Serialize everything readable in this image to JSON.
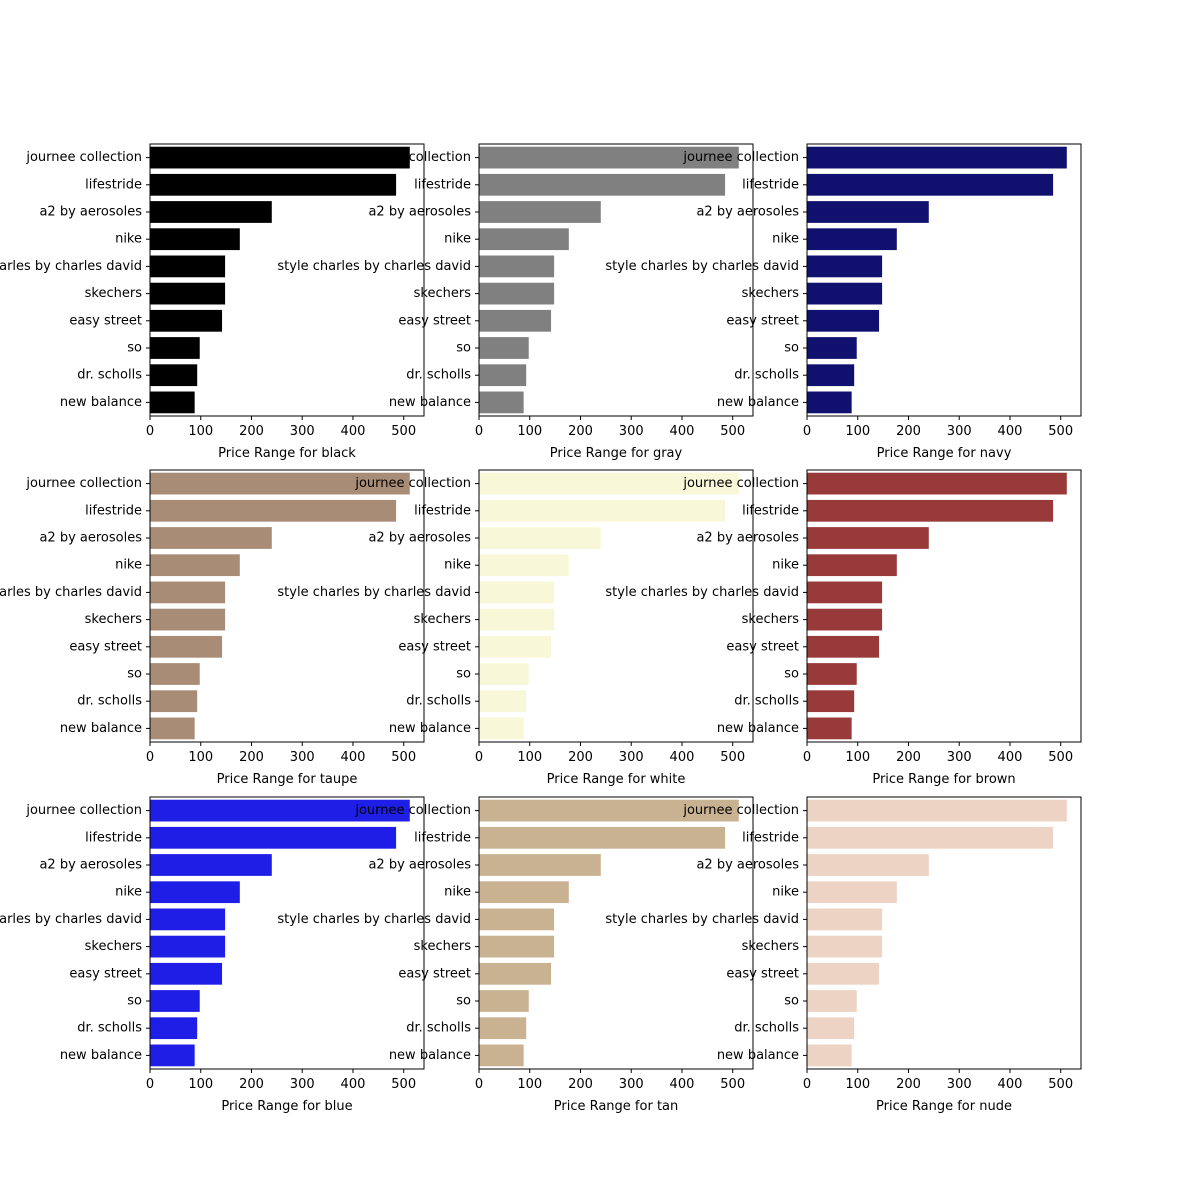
{
  "chart_data": [
    {
      "type": "bar",
      "orientation": "horizontal",
      "categories": [
        "journee collection",
        "lifestride",
        "a2 by aerosoles",
        "nike",
        "style charles by charles david",
        "skechers",
        "easy street",
        "so",
        "dr. scholls",
        "new balance"
      ],
      "values": [
        512,
        485,
        240,
        177,
        148,
        148,
        142,
        98,
        93,
        88
      ],
      "xlabel": "Price Range for black",
      "xlim": [
        0,
        540
      ],
      "xticks": [
        0,
        100,
        200,
        300,
        400,
        500
      ],
      "color": "#000000"
    },
    {
      "type": "bar",
      "orientation": "horizontal",
      "categories": [
        "journee collection",
        "lifestride",
        "a2 by aerosoles",
        "nike",
        "style charles by charles david",
        "skechers",
        "easy street",
        "so",
        "dr. scholls",
        "new balance"
      ],
      "values": [
        512,
        485,
        240,
        177,
        148,
        148,
        142,
        98,
        93,
        88
      ],
      "xlabel": "Price Range for gray",
      "xlim": [
        0,
        540
      ],
      "xticks": [
        0,
        100,
        200,
        300,
        400,
        500
      ],
      "color": "#808080"
    },
    {
      "type": "bar",
      "orientation": "horizontal",
      "categories": [
        "journee collection",
        "lifestride",
        "a2 by aerosoles",
        "nike",
        "style charles by charles david",
        "skechers",
        "easy street",
        "so",
        "dr. scholls",
        "new balance"
      ],
      "values": [
        512,
        485,
        240,
        177,
        148,
        148,
        142,
        98,
        93,
        88
      ],
      "xlabel": "Price Range for navy",
      "xlim": [
        0,
        540
      ],
      "xticks": [
        0,
        100,
        200,
        300,
        400,
        500
      ],
      "color": "#10106e"
    },
    {
      "type": "bar",
      "orientation": "horizontal",
      "categories": [
        "journee collection",
        "lifestride",
        "a2 by aerosoles",
        "nike",
        "style charles by charles david",
        "skechers",
        "easy street",
        "so",
        "dr. scholls",
        "new balance"
      ],
      "values": [
        512,
        485,
        240,
        177,
        148,
        148,
        142,
        98,
        93,
        88
      ],
      "xlabel": "Price Range for taupe",
      "xlim": [
        0,
        540
      ],
      "xticks": [
        0,
        100,
        200,
        300,
        400,
        500
      ],
      "color": "#a88c76"
    },
    {
      "type": "bar",
      "orientation": "horizontal",
      "categories": [
        "journee collection",
        "lifestride",
        "a2 by aerosoles",
        "nike",
        "style charles by charles david",
        "skechers",
        "easy street",
        "so",
        "dr. scholls",
        "new balance"
      ],
      "values": [
        512,
        485,
        240,
        177,
        148,
        148,
        142,
        98,
        93,
        88
      ],
      "xlabel": "Price Range for white",
      "xlim": [
        0,
        540
      ],
      "xticks": [
        0,
        100,
        200,
        300,
        400,
        500
      ],
      "color": "#f8f8d8"
    },
    {
      "type": "bar",
      "orientation": "horizontal",
      "categories": [
        "journee collection",
        "lifestride",
        "a2 by aerosoles",
        "nike",
        "style charles by charles david",
        "skechers",
        "easy street",
        "so",
        "dr. scholls",
        "new balance"
      ],
      "values": [
        512,
        485,
        240,
        177,
        148,
        148,
        142,
        98,
        93,
        88
      ],
      "xlabel": "Price Range for brown",
      "xlim": [
        0,
        540
      ],
      "xticks": [
        0,
        100,
        200,
        300,
        400,
        500
      ],
      "color": "#983a3a"
    },
    {
      "type": "bar",
      "orientation": "horizontal",
      "categories": [
        "journee collection",
        "lifestride",
        "a2 by aerosoles",
        "nike",
        "style charles by charles david",
        "skechers",
        "easy street",
        "so",
        "dr. scholls",
        "new balance"
      ],
      "values": [
        512,
        485,
        240,
        177,
        148,
        148,
        142,
        98,
        93,
        88
      ],
      "xlabel": "Price Range for blue",
      "xlim": [
        0,
        540
      ],
      "xticks": [
        0,
        100,
        200,
        300,
        400,
        500
      ],
      "color": "#1e1ee6"
    },
    {
      "type": "bar",
      "orientation": "horizontal",
      "categories": [
        "journee collection",
        "lifestride",
        "a2 by aerosoles",
        "nike",
        "style charles by charles david",
        "skechers",
        "easy street",
        "so",
        "dr. scholls",
        "new balance"
      ],
      "values": [
        512,
        485,
        240,
        177,
        148,
        148,
        142,
        98,
        93,
        88
      ],
      "xlabel": "Price Range for tan",
      "xlim": [
        0,
        540
      ],
      "xticks": [
        0,
        100,
        200,
        300,
        400,
        500
      ],
      "color": "#c9b292"
    },
    {
      "type": "bar",
      "orientation": "horizontal",
      "categories": [
        "journee collection",
        "lifestride",
        "a2 by aerosoles",
        "nike",
        "style charles by charles david",
        "skechers",
        "easy street",
        "so",
        "dr. scholls",
        "new balance"
      ],
      "values": [
        512,
        485,
        240,
        177,
        148,
        148,
        142,
        98,
        93,
        88
      ],
      "xlabel": "Price Range for nude",
      "xlim": [
        0,
        540
      ],
      "xticks": [
        0,
        100,
        200,
        300,
        400,
        500
      ],
      "color": "#edd3c3"
    }
  ]
}
